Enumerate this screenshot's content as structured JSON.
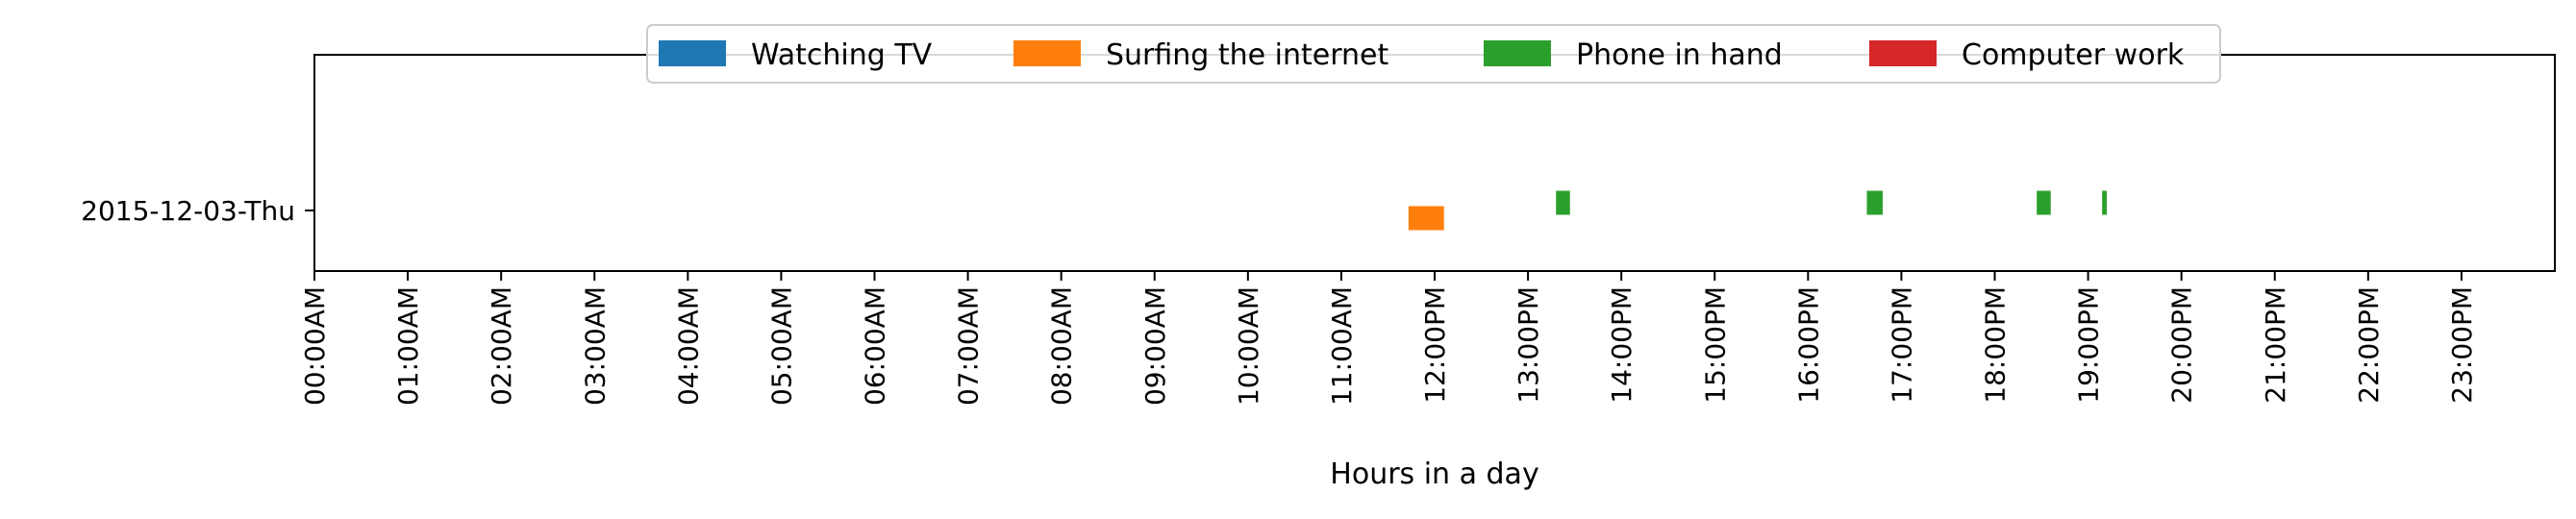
{
  "chart_data": {
    "type": "timeline",
    "xlabel": "Hours in a day",
    "ylabel": "",
    "xlim": [
      0,
      24
    ],
    "x_ticks": [
      "00:00AM",
      "01:00AM",
      "02:00AM",
      "03:00AM",
      "04:00AM",
      "05:00AM",
      "06:00AM",
      "07:00AM",
      "08:00AM",
      "09:00AM",
      "10:00AM",
      "11:00AM",
      "12:00PM",
      "13:00PM",
      "14:00PM",
      "15:00PM",
      "16:00PM",
      "17:00PM",
      "18:00PM",
      "19:00PM",
      "20:00PM",
      "21:00PM",
      "22:00PM",
      "23:00PM"
    ],
    "rows": [
      "2015-12-03-Thu"
    ],
    "legend_position": "top-center",
    "grid": false,
    "series": [
      {
        "name": "Watching TV",
        "color": "#1f77b4",
        "lane": 0,
        "events": []
      },
      {
        "name": "Surfing the internet",
        "color": "#ff7f0e",
        "lane": 1,
        "events": [
          {
            "row": "2015-12-03-Thu",
            "start": 11.72,
            "end": 12.1
          }
        ]
      },
      {
        "name": "Phone in hand",
        "color": "#2ca02c",
        "lane": -1,
        "events": [
          {
            "row": "2015-12-03-Thu",
            "start": 13.3,
            "end": 13.45
          },
          {
            "row": "2015-12-03-Thu",
            "start": 16.63,
            "end": 16.8
          },
          {
            "row": "2015-12-03-Thu",
            "start": 18.45,
            "end": 18.6
          },
          {
            "row": "2015-12-03-Thu",
            "start": 19.15,
            "end": 19.2
          }
        ]
      },
      {
        "name": "Computer work",
        "color": "#d62728",
        "lane": 0,
        "events": []
      }
    ]
  }
}
